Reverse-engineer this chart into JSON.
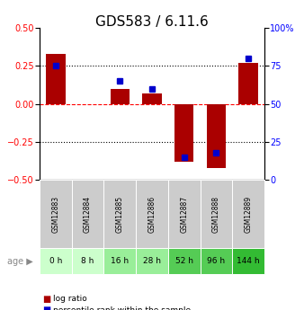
{
  "title": "GDS583 / 6.11.6",
  "samples": [
    "GSM12883",
    "GSM12884",
    "GSM12885",
    "GSM12886",
    "GSM12887",
    "GSM12888",
    "GSM12889"
  ],
  "ages": [
    "0 h",
    "8 h",
    "16 h",
    "28 h",
    "52 h",
    "96 h",
    "144 h"
  ],
  "age_colors": [
    "#ccffcc",
    "#ccffcc",
    "#99ee99",
    "#99ee99",
    "#55cc55",
    "#55cc55",
    "#33bb33"
  ],
  "log_ratios": [
    0.33,
    0.0,
    0.1,
    0.07,
    -0.38,
    -0.42,
    0.27
  ],
  "percentile_ranks": [
    75,
    0,
    65,
    60,
    15,
    18,
    80
  ],
  "bar_color": "#aa0000",
  "dot_color": "#0000cc",
  "ylim_left": [
    -0.5,
    0.5
  ],
  "ylim_right": [
    0,
    100
  ],
  "yticks_left": [
    -0.5,
    -0.25,
    0,
    0.25,
    0.5
  ],
  "yticks_right": [
    0,
    25,
    50,
    75,
    100
  ],
  "sample_box_color": "#cccccc",
  "title_fontsize": 11,
  "tick_fontsize": 7,
  "bar_width": 0.6,
  "dot_markersize": 4
}
